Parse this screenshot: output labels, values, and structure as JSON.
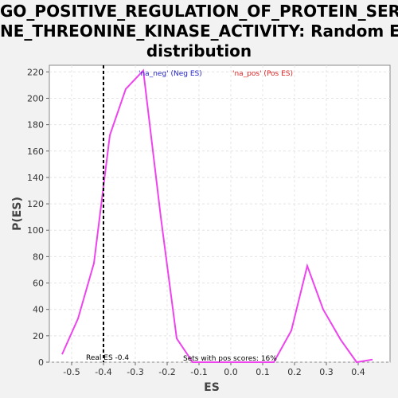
{
  "chart_data": {
    "type": "line",
    "title_lines": [
      "GO_POSITIVE_REGULATION_OF_PROTEIN_SERI",
      "NE_THREONINE_KINASE_ACTIVITY: Random ES",
      "distribution"
    ],
    "xlabel": "ES",
    "ylabel": "P(ES)",
    "xlim": [
      -0.57,
      0.5
    ],
    "ylim": [
      0,
      225
    ],
    "x_ticks": [
      -0.5,
      -0.4,
      -0.3,
      -0.2,
      -0.1,
      0.0,
      0.1,
      0.2,
      0.3,
      0.4
    ],
    "x_tick_labels": [
      "-0.5",
      "-0.4",
      "-0.3",
      "-0.2",
      "-0.1",
      "0.0",
      "0.1",
      "0.2",
      "0.3",
      "0.4"
    ],
    "y_ticks": [
      0,
      20,
      40,
      60,
      80,
      100,
      120,
      140,
      160,
      180,
      200,
      220
    ],
    "y_tick_labels": [
      "0",
      "20",
      "40",
      "60",
      "80",
      "100",
      "120",
      "140",
      "160",
      "180",
      "200",
      "220"
    ],
    "grid": true,
    "series": [
      {
        "color": "#ee44ee",
        "x": [
          -0.53,
          -0.48,
          -0.43,
          -0.38,
          -0.33,
          -0.275,
          -0.22,
          -0.17,
          -0.12,
          -0.07,
          -0.02,
          0.03,
          0.085,
          0.135,
          0.19,
          0.24,
          0.29,
          0.345,
          0.395,
          0.445
        ],
        "y": [
          6,
          33,
          75,
          172,
          207,
          221,
          110,
          18,
          0,
          0,
          0,
          0,
          0,
          0,
          24,
          73,
          40,
          17,
          0,
          2
        ]
      }
    ],
    "real_es": -0.4,
    "legend": [
      {
        "label": "'na_neg' (Neg ES)",
        "color": "#2222cc"
      },
      {
        "label": "'na_pos' (Pos ES)",
        "color": "#dd2222"
      }
    ],
    "annotations": {
      "real_es_label": "Real ES -0.4",
      "pos_scores_label": "Sets with pos scores: 16%"
    }
  }
}
